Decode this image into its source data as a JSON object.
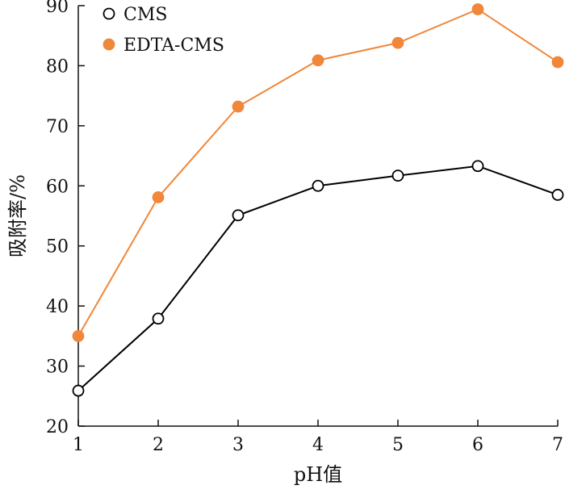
{
  "chart_data": {
    "type": "line",
    "xlabel": "pH值",
    "ylabel": "吸附率/%",
    "x": [
      1,
      2,
      3,
      4,
      5,
      6,
      7
    ],
    "xlim": [
      1,
      7
    ],
    "ylim": [
      20,
      90
    ],
    "xticks": [
      "1",
      "2",
      "3",
      "4",
      "5",
      "6",
      "7"
    ],
    "yticks": [
      "20",
      "30",
      "40",
      "50",
      "60",
      "70",
      "80",
      "90"
    ],
    "grid": false,
    "legend_position": "top-left",
    "series": [
      {
        "name": "CMS",
        "values": [
          25.9,
          37.9,
          55.1,
          60.0,
          61.7,
          63.3,
          58.5
        ],
        "color": "#000000",
        "marker": "open-circle"
      },
      {
        "name": "EDTA-CMS",
        "values": [
          35.0,
          58.1,
          73.2,
          80.9,
          83.8,
          89.4,
          80.6
        ],
        "color": "#f0873a",
        "marker": "filled-circle"
      }
    ]
  }
}
